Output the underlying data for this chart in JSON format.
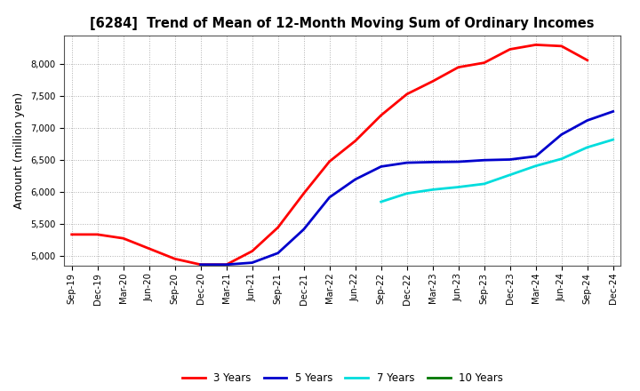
{
  "title": "[6284]  Trend of Mean of 12-Month Moving Sum of Ordinary Incomes",
  "ylabel": "Amount (million yen)",
  "background_color": "#ffffff",
  "grid_color": "#b0b0b0",
  "ylim": [
    4850,
    8450
  ],
  "yticks": [
    5000,
    5500,
    6000,
    6500,
    7000,
    7500,
    8000
  ],
  "x_labels": [
    "Sep-19",
    "Dec-19",
    "Mar-20",
    "Jun-20",
    "Sep-20",
    "Dec-20",
    "Mar-21",
    "Jun-21",
    "Sep-21",
    "Dec-21",
    "Mar-22",
    "Jun-22",
    "Sep-22",
    "Dec-22",
    "Mar-23",
    "Jun-23",
    "Sep-23",
    "Dec-23",
    "Mar-24",
    "Jun-24",
    "Sep-24",
    "Dec-24"
  ],
  "series": {
    "3 Years": {
      "color": "#ff0000",
      "data_x": [
        0,
        1,
        2,
        3,
        4,
        5,
        6,
        7,
        8,
        9,
        10,
        11,
        12,
        13,
        14,
        15,
        16,
        17,
        18,
        19,
        20
      ],
      "data_y": [
        5340,
        5340,
        5280,
        5120,
        4960,
        4870,
        4870,
        5080,
        5450,
        5980,
        6480,
        6800,
        7200,
        7530,
        7730,
        7950,
        8020,
        8230,
        8300,
        8280,
        8060
      ]
    },
    "5 Years": {
      "color": "#0000cc",
      "data_x": [
        5,
        6,
        7,
        8,
        9,
        10,
        11,
        12,
        13,
        14,
        15,
        16,
        17,
        18,
        19,
        20,
        21
      ],
      "data_y": [
        4870,
        4870,
        4900,
        5050,
        5420,
        5920,
        6200,
        6400,
        6460,
        6470,
        6475,
        6500,
        6510,
        6560,
        6900,
        7120,
        7260
      ]
    },
    "7 Years": {
      "color": "#00dddd",
      "data_x": [
        12,
        13,
        14,
        15,
        16,
        17,
        18,
        19,
        20,
        21
      ],
      "data_y": [
        5850,
        5980,
        6040,
        6080,
        6130,
        6270,
        6410,
        6520,
        6700,
        6820
      ]
    },
    "10 Years": {
      "color": "#007700",
      "data_x": [],
      "data_y": []
    }
  }
}
